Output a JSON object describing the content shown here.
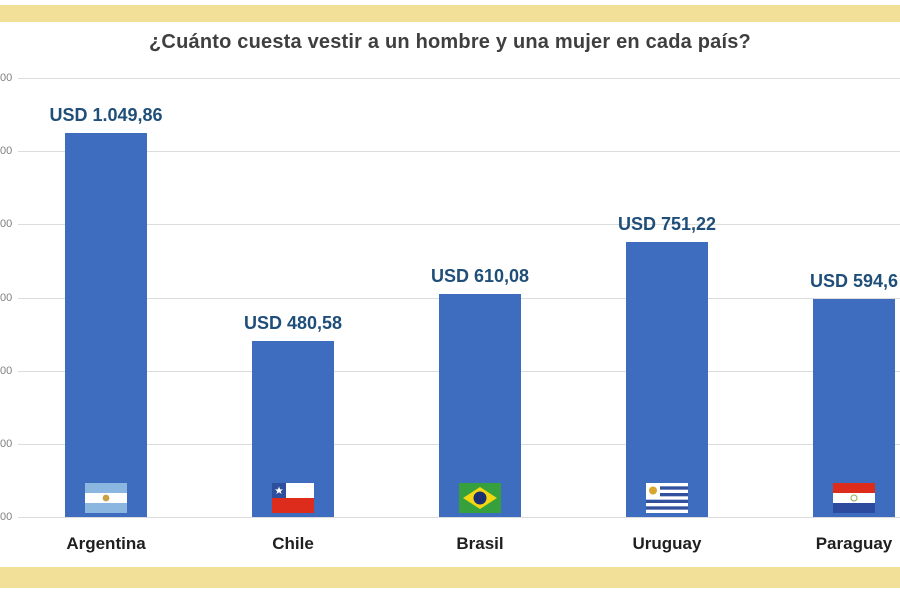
{
  "page": {
    "banner_color": "#F2E099",
    "background_color": "#FFFFFF"
  },
  "chart_data": {
    "type": "bar",
    "title": "¿Cuánto cuesta vestir a un hombre y una mujer en cada país?",
    "categories": [
      "Argentina",
      "Chile",
      "Brasil",
      "Uruguay",
      "Paraguay"
    ],
    "values": [
      1049.86,
      480.58,
      610.08,
      751.22,
      594.6
    ],
    "value_labels": [
      "USD 1.049,86",
      "USD 480,58",
      "USD 610,08",
      "USD 751,22",
      "USD 594,6"
    ],
    "xlabel": "",
    "ylabel": "",
    "ylim": [
      0,
      1200
    ],
    "ytick_step": 200,
    "ytick_labels_visible": [
      "00",
      "00",
      "00",
      "00",
      "00",
      "00",
      "00"
    ],
    "grid": true,
    "legend": "none",
    "bar_color": "#3E6CBE",
    "value_label_color": "#1F4E79",
    "flag_icons": [
      "argentina-flag",
      "chile-flag",
      "brasil-flag",
      "uruguay-flag",
      "paraguay-flag"
    ]
  }
}
